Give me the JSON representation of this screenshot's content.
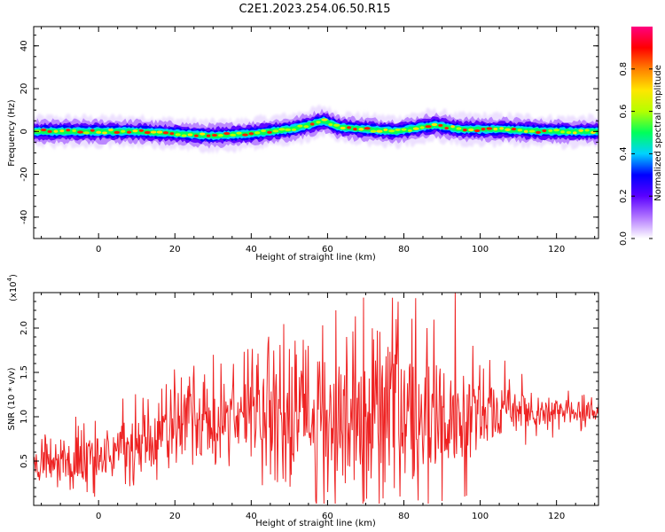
{
  "chart_data": [
    {
      "type": "heatmap",
      "title": "C2E1.2023.254.06.50.R15",
      "xlabel": "Height of straight line (km)",
      "ylabel": "Frequency (Hz)",
      "xlim": [
        -17,
        131
      ],
      "ylim": [
        -50,
        49
      ],
      "xticks": [
        0,
        20,
        40,
        60,
        80,
        100,
        120
      ],
      "yticks": [
        -40,
        -20,
        0,
        20,
        40
      ],
      "colorbar": {
        "label": "Normalized spectral amplitude",
        "range": [
          0.0,
          1.0
        ],
        "ticks": [
          "0.0",
          "0.2",
          "0.4",
          "0.6",
          "0.8"
        ],
        "colormap": [
          "#ffffff",
          "#b277ff",
          "#5a00ff",
          "#0000ff",
          "#00d2ff",
          "#00ff5a",
          "#b4ff00",
          "#ffe600",
          "#ff8000",
          "#ff0000",
          "#ff0080"
        ]
      },
      "band_center": [
        {
          "x": -15,
          "y": 0
        },
        {
          "x": 0,
          "y": 0
        },
        {
          "x": 10,
          "y": 0
        },
        {
          "x": 20,
          "y": -1
        },
        {
          "x": 30,
          "y": -2
        },
        {
          "x": 40,
          "y": -1
        },
        {
          "x": 50,
          "y": 1
        },
        {
          "x": 55,
          "y": 3
        },
        {
          "x": 59,
          "y": 5
        },
        {
          "x": 63,
          "y": 2
        },
        {
          "x": 70,
          "y": 1
        },
        {
          "x": 78,
          "y": 0
        },
        {
          "x": 88,
          "y": 3
        },
        {
          "x": 95,
          "y": 1
        },
        {
          "x": 105,
          "y": 1
        },
        {
          "x": 118,
          "y": 0
        },
        {
          "x": 130,
          "y": 0
        }
      ],
      "band_half_width_hz": 2.5
    },
    {
      "type": "line",
      "title": "",
      "xlabel": "Height of straight line (km)",
      "ylabel": "SNR (10 * v/v)",
      "multiplier_label": "(x10",
      "multiplier_exp": "4",
      "multiplier_close": ")",
      "xlim": [
        -17,
        131
      ],
      "ylim": [
        0.0,
        2.4
      ],
      "xticks": [
        0,
        20,
        40,
        60,
        80,
        100,
        120
      ],
      "yticks": [
        "0.5",
        "1.0",
        "1.5",
        "2.0"
      ],
      "series_color": "#ee2222",
      "envelope": [
        {
          "x": -17,
          "base": 0.45,
          "amp": 0.15
        },
        {
          "x": -5,
          "base": 0.48,
          "amp": 0.25
        },
        {
          "x": 10,
          "base": 0.7,
          "amp": 0.35
        },
        {
          "x": 20,
          "base": 0.85,
          "amp": 0.4
        },
        {
          "x": 40,
          "base": 1.0,
          "amp": 0.5
        },
        {
          "x": 60,
          "base": 1.0,
          "amp": 0.7
        },
        {
          "x": 80,
          "base": 1.05,
          "amp": 0.8
        },
        {
          "x": 95,
          "base": 1.0,
          "amp": 0.6
        },
        {
          "x": 110,
          "base": 1.05,
          "amp": 0.25
        },
        {
          "x": 131,
          "base": 1.05,
          "amp": 0.1
        }
      ],
      "peaks": [
        {
          "x": 78,
          "y": 2.1
        },
        {
          "x": 86,
          "y": 2.0
        },
        {
          "x": 93.5,
          "y": 2.4
        },
        {
          "x": 65,
          "y": 1.9
        },
        {
          "x": 55,
          "y": 1.8
        },
        {
          "x": 32,
          "y": 1.6
        },
        {
          "x": 98,
          "y": 1.8
        },
        {
          "x": -6,
          "y": 1.0
        },
        {
          "x": -14,
          "y": 0.8
        }
      ],
      "troughs": [
        {
          "x": 57,
          "y": 0.05
        },
        {
          "x": 60,
          "y": 0.15
        },
        {
          "x": 79,
          "y": 0.1
        },
        {
          "x": 90,
          "y": 0.05
        },
        {
          "x": 96,
          "y": 0.1
        },
        {
          "x": -3,
          "y": 0.15
        }
      ]
    }
  ]
}
